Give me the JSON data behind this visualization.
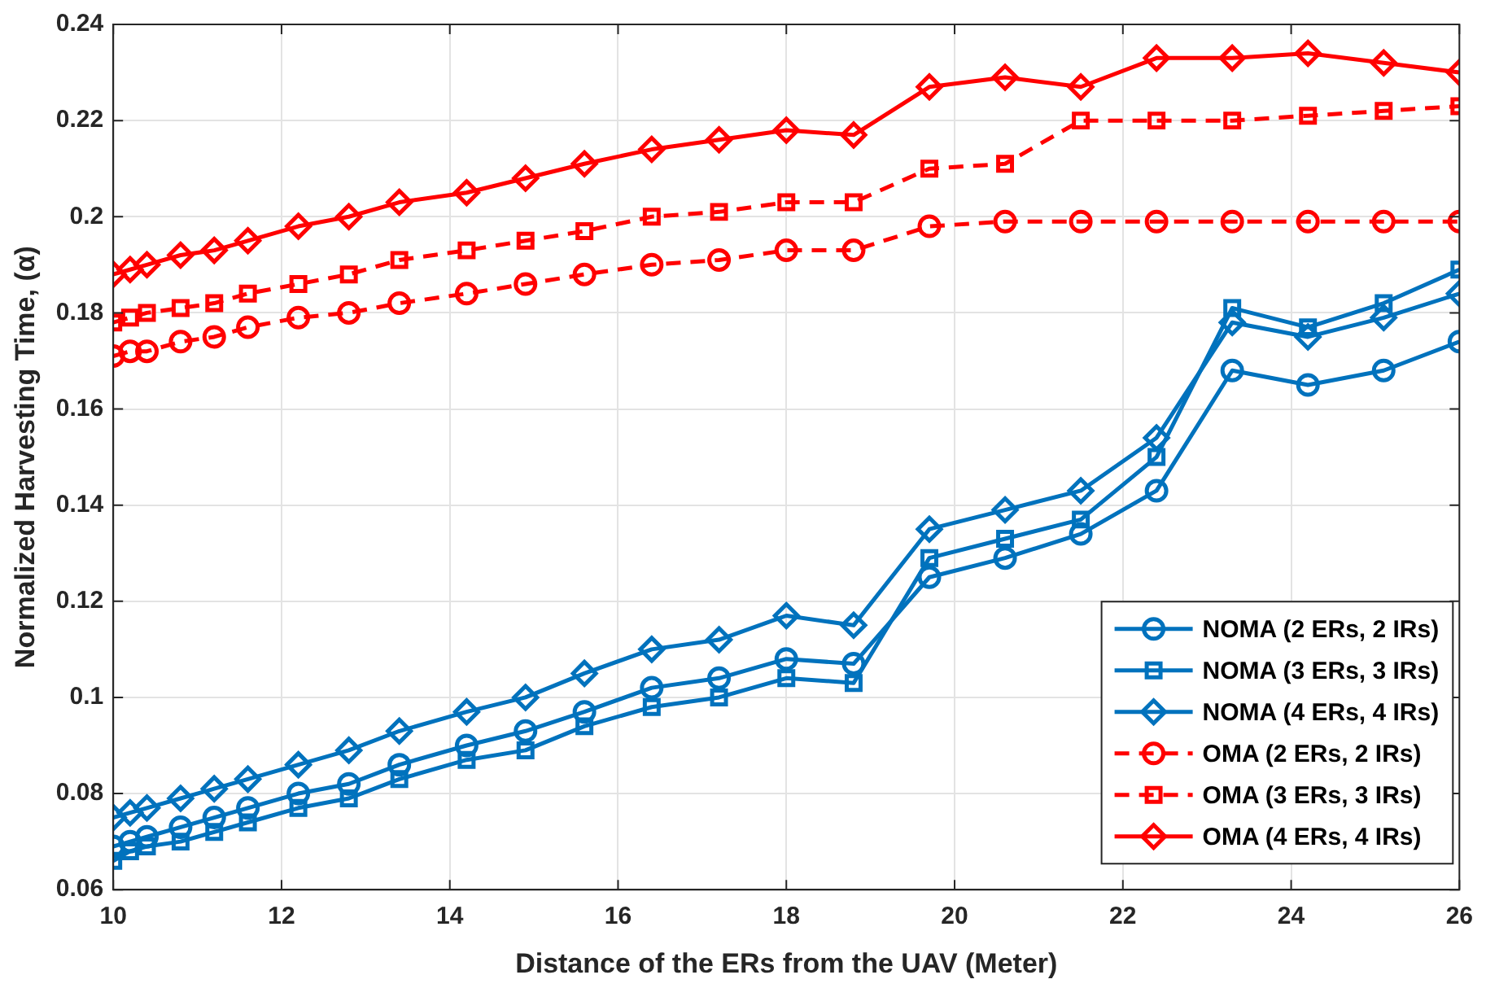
{
  "chart_data": {
    "type": "line",
    "xlabel": "Distance of the ERs from the UAV (Meter)",
    "ylabel": "Normalized Harvesting Time, (α)",
    "x": [
      10,
      10.2,
      10.4,
      10.8,
      11.2,
      11.6,
      12.2,
      12.8,
      13.4,
      14.2,
      14.9,
      15.6,
      16.4,
      17.2,
      18,
      18.8,
      19.7,
      20.6,
      21.5,
      22.4,
      23.3,
      24.2,
      25.1,
      26
    ],
    "xlim": [
      10,
      26
    ],
    "xticks": [
      10,
      12,
      14,
      16,
      18,
      20,
      22,
      24,
      26
    ],
    "ylim": [
      0.06,
      0.24
    ],
    "yticks": [
      0.06,
      0.08,
      0.1,
      0.12,
      0.14,
      0.16,
      0.18,
      0.2,
      0.22,
      0.24
    ],
    "grid": true,
    "legend": "bottom right",
    "series": [
      {
        "name": "NOMA (2 ERs, 2 IRs)",
        "color": "#0072bd",
        "marker": "circle",
        "line_style": "solid",
        "values": [
          0.069,
          0.07,
          0.071,
          0.073,
          0.075,
          0.077,
          0.08,
          0.082,
          0.086,
          0.09,
          0.093,
          0.097,
          0.102,
          0.104,
          0.108,
          0.107,
          0.125,
          0.129,
          0.134,
          0.143,
          0.168,
          0.165,
          0.168,
          0.174
        ]
      },
      {
        "name": "NOMA (3 ERs, 3 IRs)",
        "color": "#0072bd",
        "marker": "square",
        "line_style": "solid",
        "values": [
          0.066,
          0.068,
          0.069,
          0.07,
          0.072,
          0.074,
          0.077,
          0.079,
          0.083,
          0.087,
          0.089,
          0.094,
          0.098,
          0.1,
          0.104,
          0.103,
          0.129,
          0.133,
          0.137,
          0.15,
          0.181,
          0.177,
          0.182,
          0.189
        ]
      },
      {
        "name": "NOMA (4 ERs, 4 IRs)",
        "color": "#0072bd",
        "marker": "diamond",
        "line_style": "solid",
        "values": [
          0.075,
          0.076,
          0.077,
          0.079,
          0.081,
          0.083,
          0.086,
          0.089,
          0.093,
          0.097,
          0.1,
          0.105,
          0.11,
          0.112,
          0.117,
          0.115,
          0.135,
          0.139,
          0.143,
          0.154,
          0.178,
          0.175,
          0.179,
          0.184
        ]
      },
      {
        "name": "OMA (2 ERs, 2 IRs)",
        "color": "#ff0000",
        "marker": "circle",
        "line_style": "dashed",
        "values": [
          0.171,
          0.172,
          0.172,
          0.174,
          0.175,
          0.177,
          0.179,
          0.18,
          0.182,
          0.184,
          0.186,
          0.188,
          0.19,
          0.191,
          0.193,
          0.193,
          0.198,
          0.199,
          0.199,
          0.199,
          0.199,
          0.199,
          0.199,
          0.199
        ]
      },
      {
        "name": "OMA (3 ERs, 3 IRs)",
        "color": "#ff0000",
        "marker": "square",
        "line_style": "dashed",
        "values": [
          0.178,
          0.179,
          0.18,
          0.181,
          0.182,
          0.184,
          0.186,
          0.188,
          0.191,
          0.193,
          0.195,
          0.197,
          0.2,
          0.201,
          0.203,
          0.203,
          0.21,
          0.211,
          0.22,
          0.22,
          0.22,
          0.221,
          0.222,
          0.223
        ]
      },
      {
        "name": "OMA (4 ERs, 4 IRs)",
        "color": "#ff0000",
        "marker": "diamond",
        "line_style": "solid",
        "values": [
          0.188,
          0.189,
          0.19,
          0.192,
          0.193,
          0.195,
          0.198,
          0.2,
          0.203,
          0.205,
          0.208,
          0.211,
          0.214,
          0.216,
          0.218,
          0.217,
          0.227,
          0.229,
          0.227,
          0.233,
          0.233,
          0.234,
          0.232,
          0.23
        ]
      }
    ]
  }
}
